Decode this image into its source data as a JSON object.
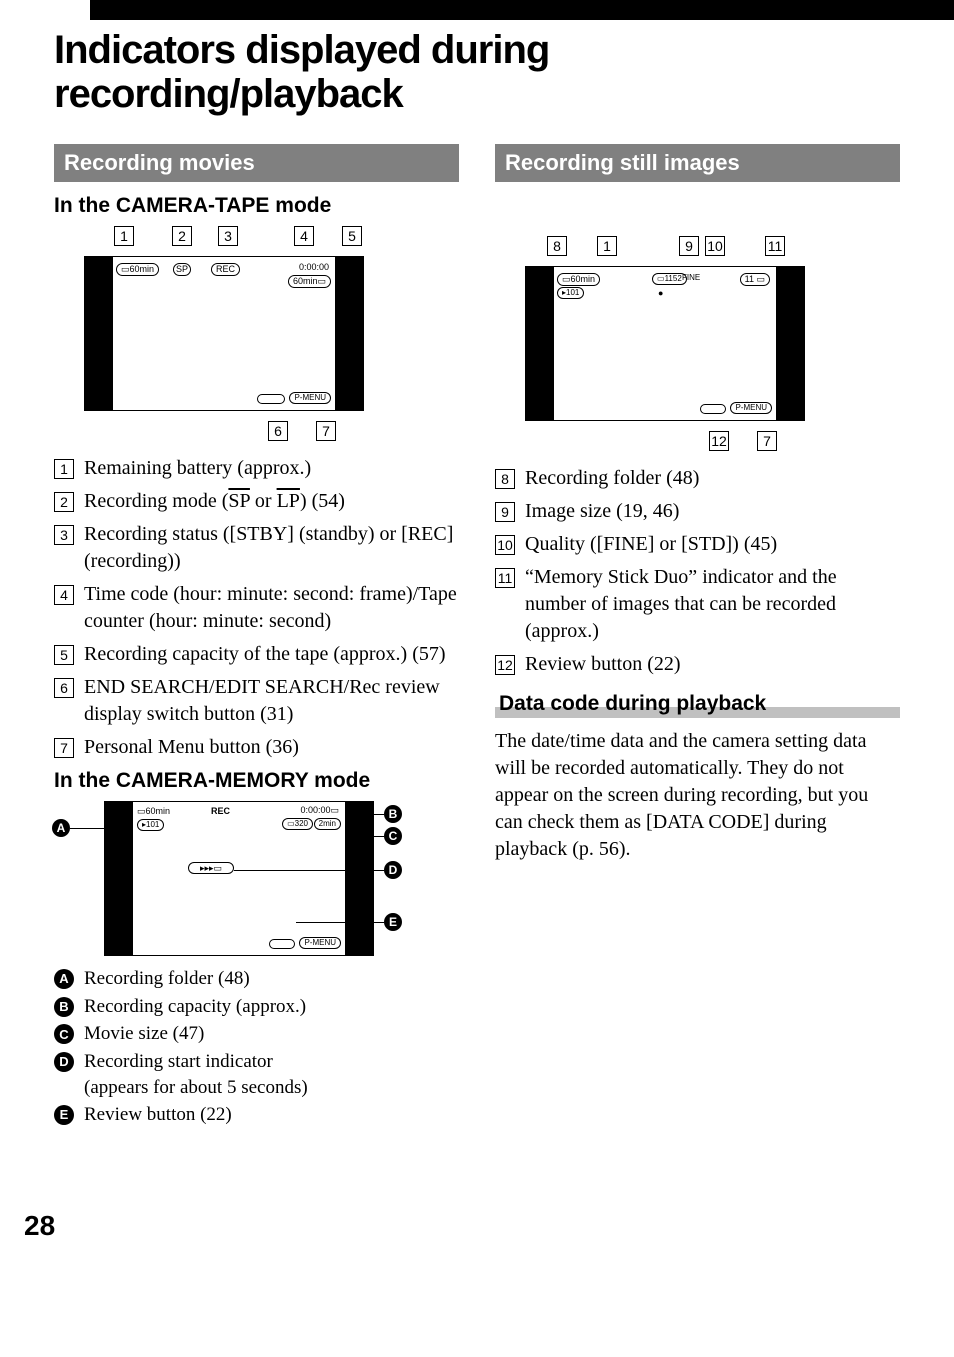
{
  "page_number": "28",
  "title": "Indicators displayed during recording/playback",
  "left": {
    "section_title": "Recording movies",
    "tape": {
      "heading": "In the CAMERA-TAPE mode",
      "screen": {
        "battery": "60min",
        "mode": "SP",
        "status": "REC",
        "timecode": "0:00:00",
        "tape_remain": "60min",
        "pmenu": "P-MENU"
      },
      "callouts": [
        "1",
        "2",
        "3",
        "4",
        "5",
        "6",
        "7"
      ],
      "items": [
        {
          "n": "1",
          "t": "Remaining battery (approx.)"
        },
        {
          "n": "2",
          "t": "Recording mode  (<span class=\"overline\">SP</span> or <span class=\"overline\">LP</span>) (54)"
        },
        {
          "n": "3",
          "t": "Recording status ([STBY] (standby) or [REC] (recording))"
        },
        {
          "n": "4",
          "t": "Time code (hour: minute: second: frame)/Tape counter (hour: minute: second)"
        },
        {
          "n": "5",
          "t": "Recording capacity of the tape (approx.) (57)"
        },
        {
          "n": "6",
          "t": "END SEARCH/EDIT SEARCH/Rec review display switch button (31)"
        },
        {
          "n": "7",
          "t": "Personal Menu button (36)"
        }
      ]
    },
    "memory": {
      "heading": "In the CAMERA-MEMORY mode",
      "screen": {
        "battery": "60min",
        "folder": "101",
        "status": "REC",
        "timecode": "0:00:00",
        "size": "320",
        "capacity": "2min",
        "pmenu": "P-MENU"
      },
      "side_labels": [
        "A",
        "B",
        "C",
        "D",
        "E"
      ],
      "items": [
        {
          "l": "A",
          "t": "Recording folder (48)"
        },
        {
          "l": "B",
          "t": "Recording capacity (approx.)"
        },
        {
          "l": "C",
          "t": "Movie size (47)"
        },
        {
          "l": "D",
          "t": "Recording start indicator<br>(appears for about 5 seconds)"
        },
        {
          "l": "E",
          "t": "Review button (22)"
        }
      ]
    }
  },
  "right": {
    "section_title": "Recording still images",
    "screen": {
      "battery": "60min",
      "folder": "101",
      "size": "1152",
      "quality": "FINE",
      "count": "11",
      "pmenu": "P-MENU"
    },
    "callouts": [
      "8",
      "1",
      "9",
      "10",
      "11",
      "12",
      "7"
    ],
    "items": [
      {
        "n": "8",
        "t": "Recording folder (48)"
      },
      {
        "n": "9",
        "t": "Image size (19, 46)"
      },
      {
        "n": "10",
        "t": "Quality ([FINE] or [STD]) (45)"
      },
      {
        "n": "11",
        "t": "“Memory Stick Duo” indicator and the number of images that can be recorded (approx.)"
      },
      {
        "n": "12",
        "t": "Review button (22)"
      }
    ],
    "datacode": {
      "heading": "Data code during playback",
      "body": "The date/time data and the camera setting data will be recorded automatically. They do not appear on the screen during recording, but you can check them as [DATA CODE] during playback (p. 56)."
    }
  }
}
